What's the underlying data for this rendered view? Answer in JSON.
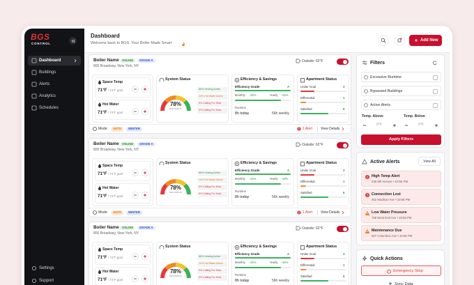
{
  "sidebar": {
    "logo": "BGS",
    "logo_sub": "CONTROL",
    "nav": [
      "Dashboard",
      "Buildings",
      "Alerts",
      "Analytics",
      "Schedules"
    ],
    "bottom_nav": [
      "Settings",
      "Support"
    ]
  },
  "header": {
    "title": "Dashboard",
    "subtitle": "Welcome back to BGS. Your Boiler Made Smart",
    "add_button": "Add New"
  },
  "boilers": [
    {
      "name": "Boiler Name",
      "status": "ONLINE",
      "grade": "GRADE A",
      "address": "800 Broadway, New York, NY",
      "outside": "Outside: 62°F",
      "space_temp": {
        "label": "Space Temp",
        "value": "71°F",
        "goal": "/ 74°F goal"
      },
      "hot_water": {
        "label": "Hot Water",
        "value": "71°F",
        "goal": "/ 74°F goal"
      },
      "system_status": {
        "title": "System Status",
        "gauge_value": "78%",
        "gauge_label": "BAS STATUS",
        "legend": [
          "86% Heating Active",
          "14% Hot Water Active",
          "0% Calling For Heat",
          "0% Calling For Heat"
        ]
      },
      "efficiency": {
        "title": "Efficiency & Savings",
        "grade_label": "Efficiency Grade",
        "grade": "A",
        "monthly_label": "Monthly",
        "monthly": "↑15%",
        "yearly_label": "Yearly",
        "yearly": "↑18%",
        "runtime_label": "Runtime",
        "runtime_today": "8h today",
        "runtime_weekly": "56h weekly"
      },
      "apartments": {
        "title": "Apartment Status",
        "rows": [
          {
            "label": "Under Goal",
            "value": "3"
          },
          {
            "label": "Differential",
            "value": "1"
          },
          {
            "label": "Satisfied",
            "value": "6"
          }
        ]
      },
      "mode_label": "Mode:",
      "mode": "AUTO",
      "season": "WINTER",
      "alerts": "1 Alert",
      "details": "View Details"
    },
    {
      "name": "Boiler Name",
      "status": "ONLINE",
      "grade": "GRADE A",
      "address": "800 Broadway, New York, NY",
      "outside": "Outside: 62°F",
      "space_temp": {
        "label": "Space Temp",
        "value": "71°F",
        "goal": "/ 74°F goal"
      },
      "hot_water": {
        "label": "Hot Water",
        "value": "71°F",
        "goal": "/ 74°F goal"
      },
      "system_status": {
        "title": "System Status",
        "gauge_value": "78%",
        "gauge_label": "BAS STATUS",
        "legend": [
          "86% Heating Active",
          "14% Hot Water Active",
          "0% Calling For Heat",
          "0% Calling For Heat"
        ]
      },
      "efficiency": {
        "title": "Efficiency & Savings",
        "grade_label": "Efficiency Grade",
        "grade": "A",
        "monthly_label": "Monthly",
        "monthly": "↑15%",
        "yearly_label": "Yearly",
        "yearly": "↑18%",
        "runtime_label": "Runtime",
        "runtime_today": "8h today",
        "runtime_weekly": "56h weekly"
      },
      "apartments": {
        "title": "Apartment Status",
        "rows": [
          {
            "label": "Under Goal",
            "value": "3"
          },
          {
            "label": "Differential",
            "value": "1"
          },
          {
            "label": "Satisfied",
            "value": "6"
          }
        ]
      },
      "mode_label": "Mode:",
      "mode": "AUTO",
      "season": "WINTER",
      "alerts": "1 Alert",
      "details": "View Details"
    },
    {
      "name": "Boiler Name",
      "status": "ONLINE",
      "grade": "GRADE A",
      "address": "800 Broadway, New York, NY",
      "outside": "Outside: 62°F",
      "space_temp": {
        "label": "Space Temp",
        "value": "71°F",
        "goal": "/ 74°F goal"
      },
      "hot_water": {
        "label": "Hot Water",
        "value": "71°F",
        "goal": "/ 74°F goal"
      },
      "system_status": {
        "title": "System Status",
        "gauge_value": "78%",
        "gauge_label": "BAS STATUS",
        "legend": [
          "86% Heating Active",
          "14% Hot Water Active",
          "0% Calling For Heat",
          "0% Calling For Heat"
        ]
      },
      "efficiency": {
        "title": "Efficiency & Savings",
        "grade_label": "Efficiency Grade",
        "grade": "A",
        "monthly_label": "Monthly",
        "monthly": "↑15%",
        "yearly_label": "Yearly",
        "yearly": "↑18%",
        "runtime_label": "Runtime",
        "runtime_today": "8h today",
        "runtime_weekly": "56h weekly"
      },
      "apartments": {
        "title": "Apartment Status",
        "rows": [
          {
            "label": "Under Goal",
            "value": "3"
          },
          {
            "label": "Differential",
            "value": "1"
          },
          {
            "label": "Satisfied",
            "value": "6"
          }
        ]
      }
    }
  ],
  "filters": {
    "title": "Filters",
    "options": [
      "Excessive Runtime",
      "Bypassed Buildings",
      "Active Alerts"
    ],
    "temp_labels": [
      "Temp. Above",
      "Temp. Below"
    ],
    "temp_values": [
      "0°F",
      "0°F"
    ],
    "apply": "Apply Filters"
  },
  "alerts": {
    "title": "Active Alerts",
    "view_all": "View All",
    "items": [
      {
        "title": "High Temp Alert",
        "detail": "235 5th Avenue • 10:56 PM",
        "color": "#d93838"
      },
      {
        "title": "Connection Lost",
        "detail": "452 Madison Ave • 10:56 PM",
        "color": "#d93838"
      },
      {
        "title": "Low Water Pressure",
        "detail": "789 West End Ave • 10:56 PM",
        "color": "#e8812a"
      },
      {
        "title": "Maintenance Due",
        "detail": "567 Columbus Ave • 10:56 PM",
        "color": "#e8812a"
      }
    ]
  },
  "quick_actions": {
    "title": "Quick Actions",
    "emergency": "Emergency Stop",
    "sync": "Sync Data"
  }
}
